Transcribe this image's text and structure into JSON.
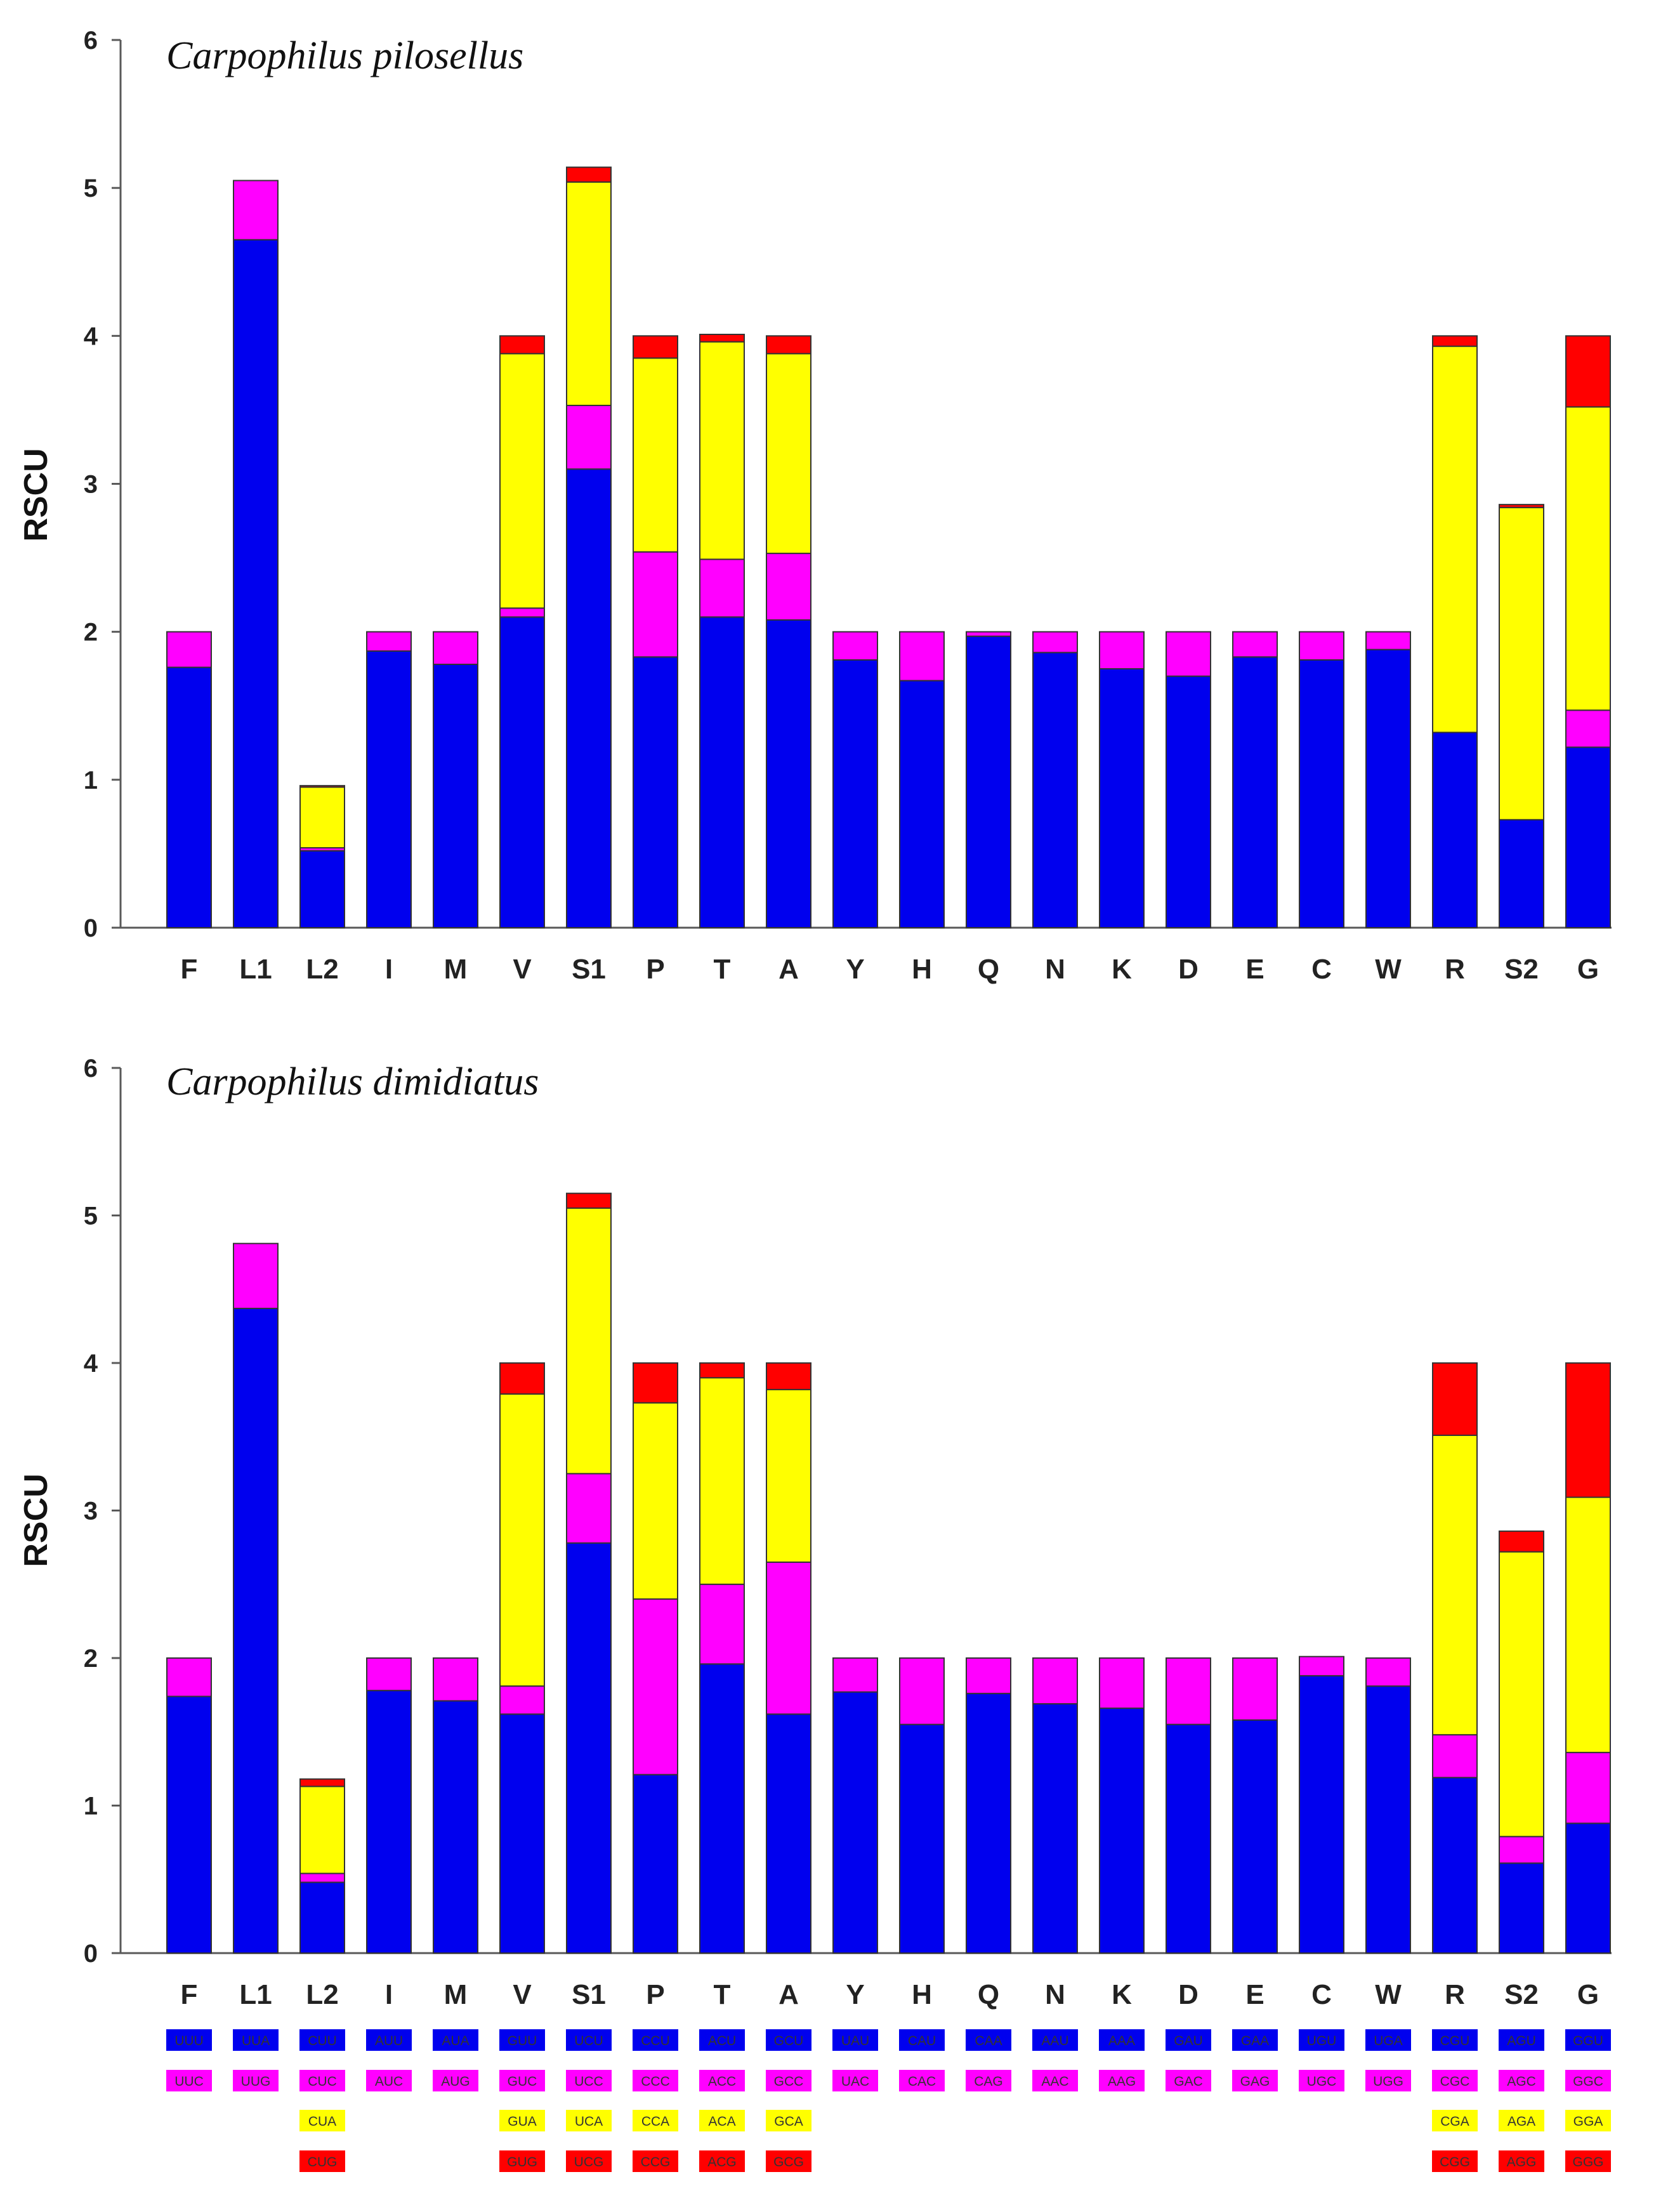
{
  "chart_data": [
    {
      "type": "bar",
      "stacked": true,
      "title": "Carpophilus pilosellus",
      "ylabel": "RSCU",
      "xlabel": "",
      "ylim": [
        0,
        6
      ],
      "yticks": [
        "0",
        "1",
        "2",
        "3",
        "4",
        "5",
        "6"
      ],
      "categories": [
        "F",
        "L1",
        "L2",
        "I",
        "M",
        "V",
        "S1",
        "P",
        "T",
        "A",
        "Y",
        "H",
        "Q",
        "N",
        "K",
        "D",
        "E",
        "C",
        "W",
        "R",
        "S2",
        "G"
      ],
      "series": [
        {
          "name": "codon 1",
          "color": "#0000ee",
          "values": [
            1.76,
            4.65,
            0.52,
            1.87,
            1.78,
            2.1,
            3.1,
            1.83,
            2.1,
            2.08,
            1.81,
            1.67,
            1.97,
            1.86,
            1.75,
            1.7,
            1.83,
            1.81,
            1.88,
            1.32,
            0.73,
            1.22
          ]
        },
        {
          "name": "codon 2",
          "color": "#ff00ff",
          "values": [
            0.24,
            0.4,
            0.02,
            0.13,
            0.22,
            0.06,
            0.43,
            0.71,
            0.39,
            0.45,
            0.19,
            0.33,
            0.03,
            0.14,
            0.25,
            0.3,
            0.17,
            0.19,
            0.12,
            0.0,
            0.0,
            0.25
          ]
        },
        {
          "name": "codon 3",
          "color": "#ffff00",
          "values": [
            0,
            0,
            0.41,
            0,
            0,
            1.72,
            1.51,
            1.31,
            1.47,
            1.35,
            0,
            0,
            0,
            0,
            0,
            0,
            0,
            0,
            0,
            2.61,
            2.11,
            2.05
          ]
        },
        {
          "name": "codon 4",
          "color": "#ff0000",
          "values": [
            0,
            0,
            0.01,
            0,
            0,
            0.12,
            0.1,
            0.15,
            0.05,
            0.12,
            0,
            0,
            0,
            0,
            0,
            0,
            0,
            0,
            0,
            0.07,
            0.02,
            0.48
          ]
        }
      ]
    },
    {
      "type": "bar",
      "stacked": true,
      "title": "Carpophilus dimidiatus",
      "ylabel": "RSCU",
      "xlabel": "",
      "ylim": [
        0,
        6
      ],
      "yticks": [
        "0",
        "1",
        "2",
        "3",
        "4",
        "5",
        "6"
      ],
      "categories": [
        "F",
        "L1",
        "L2",
        "I",
        "M",
        "V",
        "S1",
        "P",
        "T",
        "A",
        "Y",
        "H",
        "Q",
        "N",
        "K",
        "D",
        "E",
        "C",
        "W",
        "R",
        "S2",
        "G"
      ],
      "series": [
        {
          "name": "codon 1",
          "color": "#0000ee",
          "values": [
            1.74,
            4.37,
            0.48,
            1.78,
            1.71,
            1.62,
            2.78,
            1.21,
            1.96,
            1.62,
            1.77,
            1.55,
            1.76,
            1.69,
            1.66,
            1.55,
            1.58,
            1.88,
            1.81,
            1.19,
            0.61,
            0.88
          ]
        },
        {
          "name": "codon 2",
          "color": "#ff00ff",
          "values": [
            0.26,
            0.44,
            0.06,
            0.22,
            0.29,
            0.19,
            0.47,
            1.19,
            0.54,
            1.03,
            0.23,
            0.45,
            0.24,
            0.31,
            0.34,
            0.45,
            0.42,
            0.13,
            0.19,
            0.29,
            0.18,
            0.48
          ]
        },
        {
          "name": "codon 3",
          "color": "#ffff00",
          "values": [
            0,
            0,
            0.59,
            0,
            0,
            1.98,
            1.8,
            1.33,
            1.4,
            1.17,
            0,
            0,
            0,
            0,
            0,
            0,
            0,
            0,
            0,
            2.03,
            1.93,
            1.73
          ]
        },
        {
          "name": "codon 4",
          "color": "#ff0000",
          "values": [
            0,
            0,
            0.05,
            0,
            0,
            0.21,
            0.1,
            0.27,
            0.1,
            0.18,
            0,
            0,
            0,
            0,
            0,
            0,
            0,
            0,
            0,
            0.49,
            0.14,
            0.91
          ]
        }
      ]
    }
  ],
  "codon_legend": {
    "rows": [
      {
        "color": "#0000ee",
        "codons": [
          "UUU",
          "UUA",
          "CUU",
          "AUU",
          "AUA",
          "GUU",
          "UCU",
          "CCU",
          "ACU",
          "GCU",
          "UAU",
          "CAU",
          "CAA",
          "AAU",
          "AAA",
          "GAU",
          "GAA",
          "UGU",
          "UGA",
          "CGU",
          "AGU",
          "GGU"
        ]
      },
      {
        "color": "#ff00ff",
        "codons": [
          "UUC",
          "UUG",
          "CUC",
          "AUC",
          "AUG",
          "GUC",
          "UCC",
          "CCC",
          "ACC",
          "GCC",
          "UAC",
          "CAC",
          "CAG",
          "AAC",
          "AAG",
          "GAC",
          "GAG",
          "UGC",
          "UGG",
          "CGC",
          "AGC",
          "GGC"
        ]
      },
      {
        "color": "#ffff00",
        "codons": [
          "",
          "",
          "CUA",
          "",
          "",
          "GUA",
          "UCA",
          "CCA",
          "ACA",
          "GCA",
          "",
          "",
          "",
          "",
          "",
          "",
          "",
          "",
          "",
          "CGA",
          "AGA",
          "GGA"
        ]
      },
      {
        "color": "#ff0000",
        "codons": [
          "",
          "",
          "CUG",
          "",
          "",
          "GUG",
          "UCG",
          "CCG",
          "ACG",
          "GCG",
          "",
          "",
          "",
          "",
          "",
          "",
          "",
          "",
          "",
          "CGG",
          "AGG",
          "GGG"
        ]
      }
    ]
  }
}
